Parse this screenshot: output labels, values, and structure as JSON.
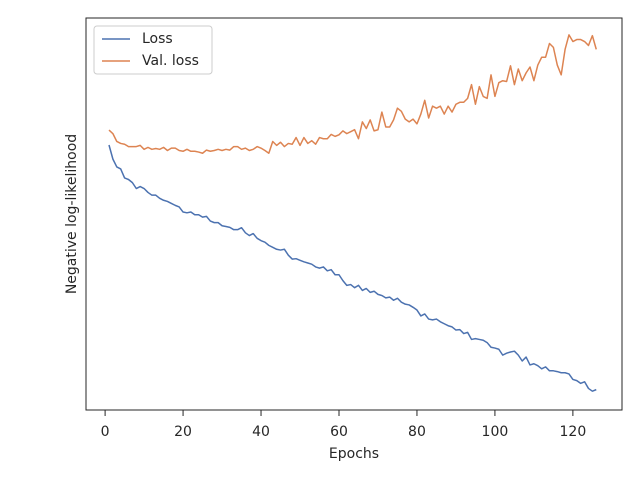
{
  "chart_data": {
    "type": "line",
    "xlabel": "Epochs",
    "ylabel": "Negative log-likelihood",
    "x": [
      1,
      2,
      3,
      4,
      5,
      6,
      7,
      8,
      9,
      10,
      11,
      12,
      13,
      14,
      15,
      16,
      17,
      18,
      19,
      20,
      21,
      22,
      23,
      24,
      25,
      26,
      27,
      28,
      29,
      30,
      31,
      32,
      33,
      34,
      35,
      36,
      37,
      38,
      39,
      40,
      41,
      42,
      43,
      44,
      45,
      46,
      47,
      48,
      49,
      50,
      51,
      52,
      53,
      54,
      55,
      56,
      57,
      58,
      59,
      60,
      61,
      62,
      63,
      64,
      65,
      66,
      67,
      68,
      69,
      70,
      71,
      72,
      73,
      74,
      75,
      76,
      77,
      78,
      79,
      80,
      81,
      82,
      83,
      84,
      85,
      86,
      87,
      88,
      89,
      90,
      91,
      92,
      93,
      94,
      95,
      96,
      97,
      98,
      99,
      100,
      101,
      102,
      103,
      104,
      105,
      106,
      107,
      108,
      109,
      110,
      111,
      112,
      113,
      114,
      115,
      116,
      117,
      118,
      119,
      120,
      121,
      122,
      123,
      124,
      125,
      126
    ],
    "series": [
      {
        "name": "Loss",
        "color": "#4c72b0",
        "values": [
          0.676,
          0.64,
          0.62,
          0.615,
          0.592,
          0.588,
          0.58,
          0.565,
          0.57,
          0.565,
          0.555,
          0.548,
          0.548,
          0.54,
          0.535,
          0.532,
          0.527,
          0.522,
          0.518,
          0.505,
          0.503,
          0.505,
          0.498,
          0.498,
          0.492,
          0.494,
          0.482,
          0.478,
          0.478,
          0.47,
          0.468,
          0.466,
          0.46,
          0.46,
          0.465,
          0.452,
          0.445,
          0.45,
          0.438,
          0.432,
          0.428,
          0.42,
          0.415,
          0.41,
          0.408,
          0.41,
          0.395,
          0.385,
          0.386,
          0.382,
          0.378,
          0.375,
          0.372,
          0.365,
          0.362,
          0.365,
          0.355,
          0.358,
          0.345,
          0.345,
          0.33,
          0.318,
          0.32,
          0.312,
          0.318,
          0.305,
          0.31,
          0.3,
          0.303,
          0.295,
          0.292,
          0.286,
          0.288,
          0.28,
          0.285,
          0.275,
          0.27,
          0.268,
          0.262,
          0.255,
          0.24,
          0.245,
          0.232,
          0.23,
          0.232,
          0.225,
          0.22,
          0.215,
          0.212,
          0.204,
          0.205,
          0.195,
          0.198,
          0.18,
          0.182,
          0.18,
          0.178,
          0.172,
          0.16,
          0.158,
          0.155,
          0.14,
          0.145,
          0.148,
          0.15,
          0.14,
          0.125,
          0.135,
          0.115,
          0.118,
          0.113,
          0.105,
          0.11,
          0.1,
          0.1,
          0.098,
          0.095,
          0.095,
          0.092,
          0.078,
          0.075,
          0.068,
          0.072,
          0.055,
          0.048,
          0.052
        ]
      },
      {
        "name": "Val. loss",
        "color": "#dd8452",
        "values": [
          0.714,
          0.705,
          0.685,
          0.68,
          0.678,
          0.672,
          0.672,
          0.672,
          0.675,
          0.665,
          0.67,
          0.665,
          0.667,
          0.665,
          0.67,
          0.662,
          0.668,
          0.668,
          0.662,
          0.66,
          0.665,
          0.66,
          0.66,
          0.658,
          0.655,
          0.663,
          0.66,
          0.662,
          0.665,
          0.662,
          0.665,
          0.663,
          0.672,
          0.672,
          0.665,
          0.668,
          0.662,
          0.665,
          0.672,
          0.668,
          0.662,
          0.655,
          0.685,
          0.675,
          0.683,
          0.672,
          0.68,
          0.678,
          0.695,
          0.675,
          0.695,
          0.68,
          0.687,
          0.678,
          0.695,
          0.692,
          0.692,
          0.703,
          0.698,
          0.702,
          0.712,
          0.705,
          0.71,
          0.715,
          0.692,
          0.735,
          0.718,
          0.74,
          0.712,
          0.715,
          0.76,
          0.722,
          0.722,
          0.74,
          0.77,
          0.762,
          0.742,
          0.735,
          0.742,
          0.73,
          0.755,
          0.79,
          0.745,
          0.775,
          0.77,
          0.775,
          0.755,
          0.775,
          0.76,
          0.78,
          0.785,
          0.785,
          0.795,
          0.83,
          0.78,
          0.825,
          0.8,
          0.795,
          0.855,
          0.8,
          0.835,
          0.84,
          0.838,
          0.878,
          0.83,
          0.87,
          0.84,
          0.86,
          0.875,
          0.84,
          0.88,
          0.9,
          0.9,
          0.935,
          0.925,
          0.88,
          0.855,
          0.92,
          0.957,
          0.94,
          0.945,
          0.945,
          0.94,
          0.93,
          0.955,
          0.92
        ]
      }
    ],
    "xlim": [
      -4.9,
      132.6
    ],
    "xticks": [
      0,
      20,
      40,
      60,
      80,
      100,
      120
    ],
    "ylim": [
      0,
      1
    ],
    "legend": "upper left"
  }
}
